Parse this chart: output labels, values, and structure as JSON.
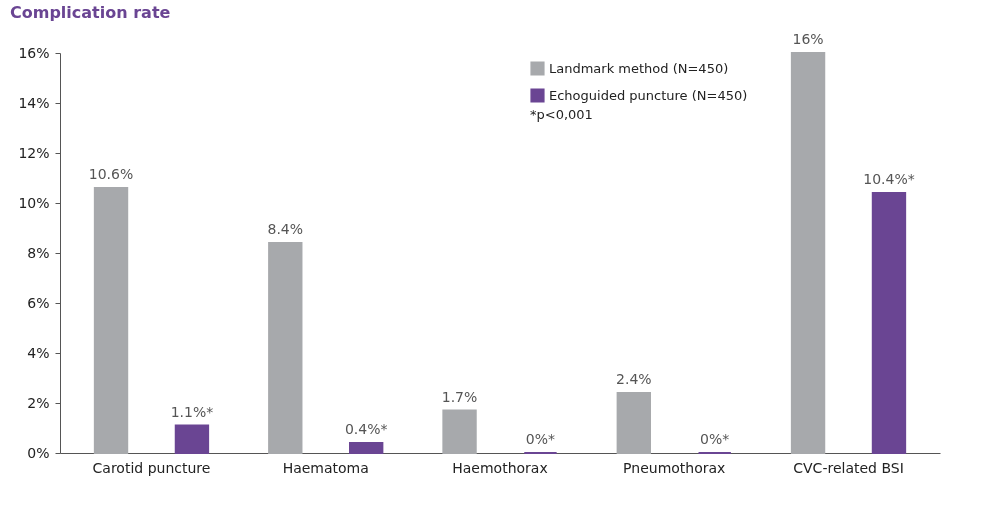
{
  "chart_data": {
    "type": "bar",
    "title": "Complication rate",
    "categories": [
      "Carotid puncture",
      "Haematoma",
      "Haemothorax",
      "Pneumothorax",
      "CVC-related BSI"
    ],
    "series": [
      {
        "name": "Landmark method (N=450)",
        "color": "#a7a9ac",
        "values": [
          10.6,
          8.4,
          1.7,
          2.4,
          16
        ],
        "value_labels": [
          "10.6%",
          "8.4%",
          "1.7%",
          "2.4%",
          "16%"
        ]
      },
      {
        "name": "Echoguided puncture (N=450)",
        "color": "#6a4593",
        "values": [
          1.1,
          0.4,
          0,
          0,
          10.4
        ],
        "value_labels": [
          "1.1%*",
          "0.4%*",
          "0%*",
          "0%*",
          "10.4%*"
        ]
      }
    ],
    "ylim": [
      0,
      16
    ],
    "yticks": [
      {
        "value": 0,
        "label": "0%"
      },
      {
        "value": 2,
        "label": "2%"
      },
      {
        "value": 4,
        "label": "4%"
      },
      {
        "value": 6,
        "label": "6%"
      },
      {
        "value": 8,
        "label": "8%"
      },
      {
        "value": 10,
        "label": "10%"
      },
      {
        "value": 12,
        "label": "12%"
      },
      {
        "value": 14,
        "label": "14%"
      },
      {
        "value": 16,
        "label": "16%"
      }
    ],
    "grid": false,
    "legend": "top right",
    "annotations": [
      "*p<0,001"
    ]
  }
}
